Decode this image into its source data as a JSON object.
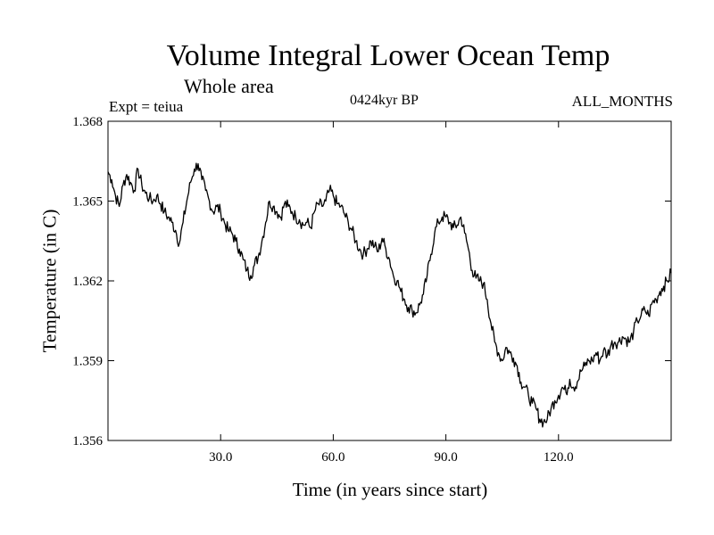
{
  "chart_data": {
    "type": "line",
    "title": "Volume Integral Lower Ocean Temp",
    "subtitle": "Whole area",
    "experiment_label": "Expt = teiua",
    "period_label": "0424kyr BP",
    "months_label": "ALL_MONTHS",
    "xlabel": "Time (in years since start)",
    "ylabel": "Temperature (in C)",
    "xlim": [
      0,
      150
    ],
    "ylim": [
      1.356,
      1.368
    ],
    "xticks": [
      30,
      60,
      90,
      120
    ],
    "xtick_labels": [
      "30.0",
      "60.0",
      "90.0",
      "120.0"
    ],
    "yticks": [
      1.356,
      1.359,
      1.362,
      1.365,
      1.368
    ],
    "ytick_labels": [
      "1.356",
      "1.359",
      "1.362",
      "1.365",
      "1.368"
    ],
    "grid": false,
    "legend": "none",
    "series": [
      {
        "name": "Volume Integral Lower Ocean Temp",
        "x": [
          0,
          1,
          2,
          3,
          4,
          5,
          6,
          7,
          8,
          9,
          10,
          11,
          12,
          13,
          14,
          15,
          16,
          17,
          18,
          19,
          20,
          21,
          22,
          23,
          24,
          25,
          26,
          27,
          28,
          29,
          30,
          31,
          32,
          33,
          34,
          35,
          36,
          37,
          38,
          39,
          40,
          41,
          42,
          43,
          44,
          45,
          46,
          47,
          48,
          49,
          50,
          51,
          52,
          53,
          54,
          55,
          56,
          57,
          58,
          59,
          60,
          61,
          62,
          63,
          64,
          65,
          66,
          67,
          68,
          69,
          70,
          71,
          72,
          73,
          74,
          75,
          76,
          77,
          78,
          79,
          80,
          81,
          82,
          83,
          84,
          85,
          86,
          87,
          88,
          89,
          90,
          91,
          92,
          93,
          94,
          95,
          96,
          97,
          98,
          99,
          100,
          101,
          102,
          103,
          104,
          105,
          106,
          107,
          108,
          109,
          110,
          111,
          112,
          113,
          114,
          115,
          116,
          117,
          118,
          119,
          120,
          121,
          122,
          123,
          124,
          125,
          126,
          127,
          128,
          129,
          130,
          131,
          132,
          133,
          134,
          135,
          136,
          137,
          138,
          139,
          140,
          141,
          142,
          143,
          144,
          145,
          146,
          147,
          148,
          149,
          150
        ],
        "values": [
          1.3661,
          1.3658,
          1.3652,
          1.3648,
          1.3656,
          1.366,
          1.3657,
          1.3654,
          1.3662,
          1.3656,
          1.3653,
          1.3651,
          1.365,
          1.3652,
          1.3649,
          1.3646,
          1.3644,
          1.3642,
          1.3639,
          1.3634,
          1.3642,
          1.365,
          1.3657,
          1.3662,
          1.3664,
          1.3658,
          1.3654,
          1.365,
          1.3646,
          1.3648,
          1.3646,
          1.3642,
          1.3639,
          1.3638,
          1.3635,
          1.3632,
          1.3628,
          1.3624,
          1.3622,
          1.3626,
          1.3629,
          1.3635,
          1.3642,
          1.365,
          1.3648,
          1.3646,
          1.3644,
          1.3649,
          1.3648,
          1.3646,
          1.3644,
          1.3643,
          1.3641,
          1.3642,
          1.364,
          1.3646,
          1.3649,
          1.3648,
          1.365,
          1.3654,
          1.3652,
          1.3649,
          1.3648,
          1.3645,
          1.3642,
          1.3639,
          1.3635,
          1.3632,
          1.363,
          1.3632,
          1.3635,
          1.3633,
          1.3631,
          1.3636,
          1.3632,
          1.3628,
          1.3622,
          1.362,
          1.3616,
          1.3613,
          1.361,
          1.3609,
          1.3608,
          1.3611,
          1.3615,
          1.3622,
          1.363,
          1.3638,
          1.3642,
          1.3644,
          1.3644,
          1.3642,
          1.364,
          1.3641,
          1.3644,
          1.3638,
          1.3632,
          1.3624,
          1.3621,
          1.362,
          1.3619,
          1.3613,
          1.3604,
          1.3597,
          1.3593,
          1.359,
          1.3595,
          1.3593,
          1.3591,
          1.3588,
          1.3582,
          1.358,
          1.3577,
          1.3574,
          1.3572,
          1.3568,
          1.3567,
          1.3568,
          1.3572,
          1.3575,
          1.3577,
          1.358,
          1.3578,
          1.3583,
          1.358,
          1.3582,
          1.3586,
          1.3588,
          1.359,
          1.359,
          1.3593,
          1.359,
          1.3594,
          1.3592,
          1.3596,
          1.3597,
          1.3597,
          1.3599,
          1.3598,
          1.3597,
          1.3601,
          1.3605,
          1.3607,
          1.3609,
          1.3607,
          1.3612,
          1.3613,
          1.3616,
          1.3618,
          1.362,
          1.3623
        ]
      }
    ]
  }
}
